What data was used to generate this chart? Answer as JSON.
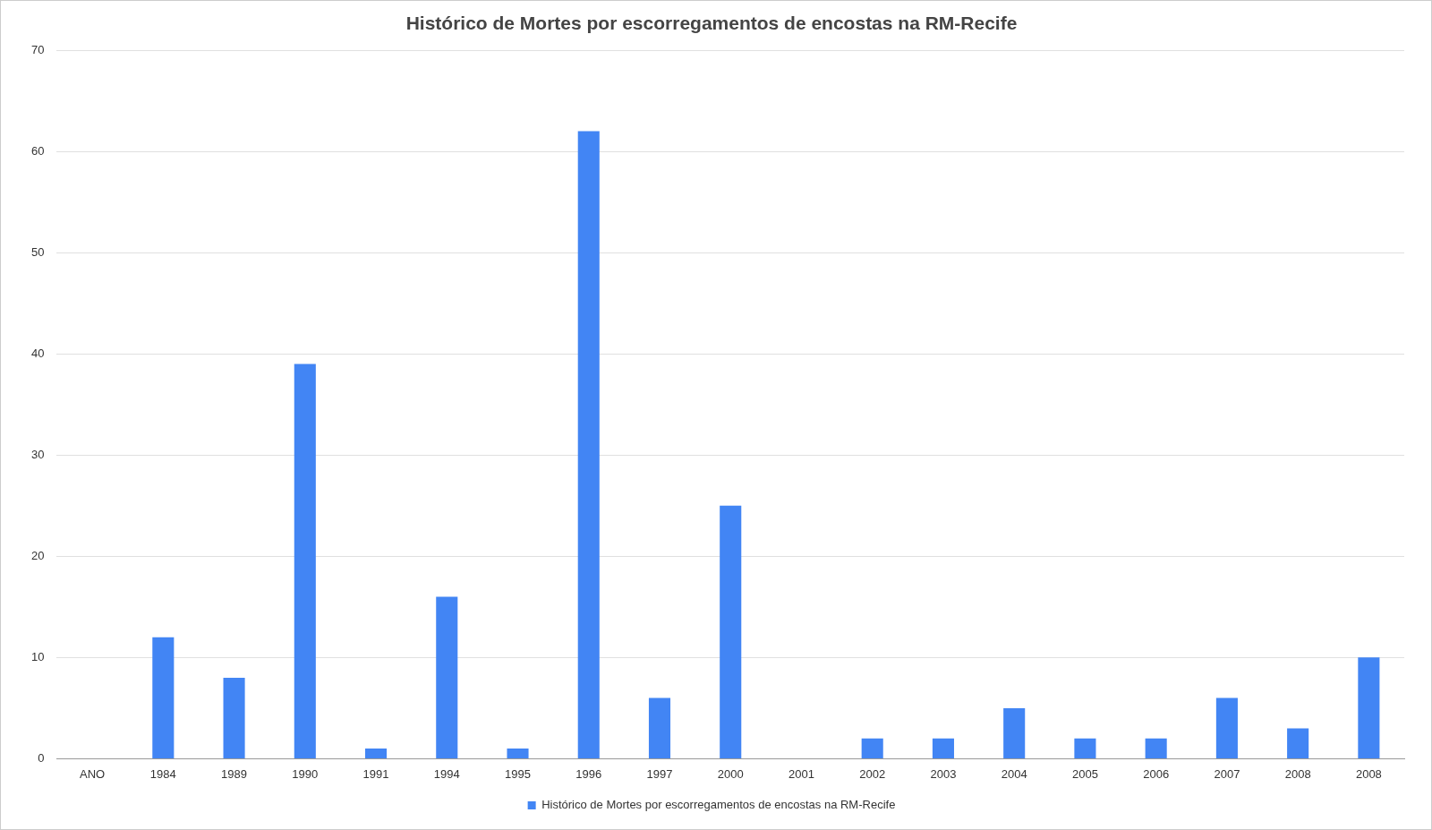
{
  "chart_data": {
    "type": "bar",
    "title": "Histórico de Mortes por escorregamentos de encostas na RM-Recife",
    "categories": [
      "ANO",
      "1984",
      "1989",
      "1990",
      "1991",
      "1994",
      "1995",
      "1996",
      "1997",
      "2000",
      "2001",
      "2002",
      "2003",
      "2004",
      "2005",
      "2006",
      "2007",
      "2008",
      "2008"
    ],
    "series": [
      {
        "name": "Histórico de Mortes por escorregamentos de encostas na RM-Recife",
        "color": "#4285f4",
        "values": [
          null,
          12,
          8,
          39,
          1,
          16,
          1,
          62,
          6,
          25,
          null,
          2,
          2,
          5,
          2,
          2,
          6,
          3,
          10
        ]
      }
    ],
    "ylim": [
      0,
      70
    ],
    "yticks": [
      0,
      10,
      20,
      30,
      40,
      50,
      60,
      70
    ],
    "grid": "y",
    "legend": "bottom"
  }
}
